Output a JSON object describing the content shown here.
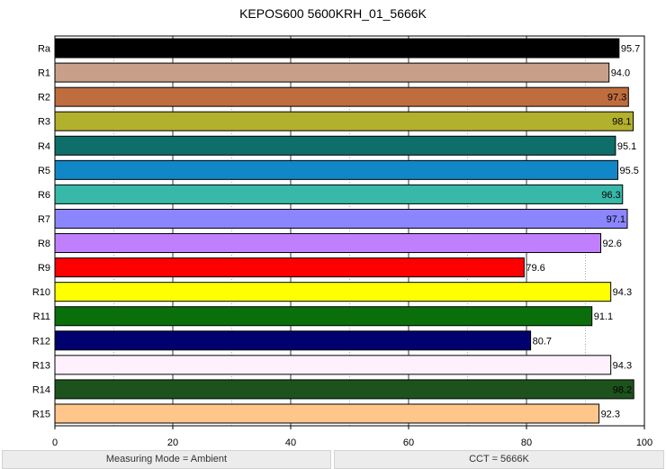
{
  "chart_data": {
    "type": "bar",
    "orientation": "horizontal",
    "title": "KEPOS600 5600KRH_01_5666K",
    "categories": [
      "Ra",
      "R1",
      "R2",
      "R3",
      "R4",
      "R5",
      "R6",
      "R7",
      "R8",
      "R9",
      "R10",
      "R11",
      "R12",
      "R13",
      "R14",
      "R15"
    ],
    "values": [
      95.7,
      94.0,
      97.3,
      98.1,
      95.1,
      95.5,
      96.3,
      97.1,
      92.6,
      79.6,
      94.3,
      91.1,
      80.7,
      94.3,
      98.2,
      92.3
    ],
    "value_labels": [
      "95.7",
      "94.0",
      "97.3",
      "98.1",
      "95.1",
      "95.5",
      "96.3",
      "97.1",
      "92.6",
      "79.6",
      "94.3",
      "91.1",
      "80.7",
      "94.3",
      "98.2",
      "92.3"
    ],
    "colors": [
      "#000000",
      "#c8a08a",
      "#bf6d3e",
      "#b3b02d",
      "#0e6e6a",
      "#1287c7",
      "#37b8a9",
      "#8c86fe",
      "#c080fe",
      "#ff0000",
      "#ffff00",
      "#0a6e0a",
      "#00006e",
      "#fff0fd",
      "#1d521d",
      "#ffc68c"
    ],
    "label_inside": [
      false,
      false,
      true,
      true,
      false,
      false,
      true,
      true,
      false,
      false,
      false,
      false,
      false,
      false,
      true,
      false
    ],
    "xlim": [
      0,
      100
    ],
    "xticks": [
      "0",
      "20",
      "40",
      "60",
      "80",
      "100"
    ],
    "grid": "vertical-major-and-minor",
    "legend": "none"
  },
  "footer": {
    "left": "Measuring Mode = Ambient",
    "right": "CCT = 5666K"
  }
}
